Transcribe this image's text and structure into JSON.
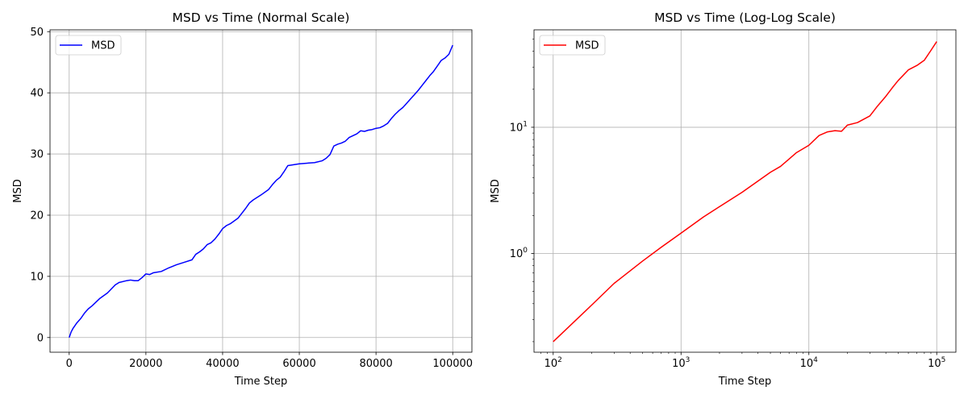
{
  "chart_data": [
    {
      "type": "line",
      "title": "MSD vs Time (Normal Scale)",
      "xlabel": "Time Step",
      "ylabel": "MSD",
      "xscale": "linear",
      "yscale": "linear",
      "xlim": [
        -5000,
        105000
      ],
      "ylim": [
        -2.4,
        50.3
      ],
      "xticks": [
        0,
        20000,
        40000,
        60000,
        80000,
        100000
      ],
      "xtick_labels": [
        "0",
        "20000",
        "40000",
        "60000",
        "80000",
        "100000"
      ],
      "yticks": [
        0,
        10,
        20,
        30,
        40,
        50
      ],
      "ytick_labels": [
        "0",
        "10",
        "20",
        "30",
        "40",
        "50"
      ],
      "grid": true,
      "legend": {
        "placement": "upper-left",
        "entries": [
          "MSD"
        ]
      },
      "series": [
        {
          "name": "MSD",
          "color": "#0000ff",
          "x": [
            0,
            500,
            1000,
            2000,
            3000,
            4000,
            5000,
            6000,
            8000,
            10000,
            12000,
            13000,
            15000,
            16000,
            17000,
            18000,
            19000,
            20000,
            21000,
            22000,
            24000,
            26000,
            28000,
            30000,
            32000,
            33000,
            34000,
            35000,
            36000,
            37000,
            38000,
            39000,
            40000,
            41000,
            42000,
            44000,
            46000,
            47000,
            48000,
            50000,
            52000,
            53000,
            54000,
            55000,
            56000,
            57000,
            58000,
            59000,
            60000,
            62000,
            64000,
            66000,
            67000,
            68000,
            69000,
            70000,
            71000,
            72000,
            73000,
            74000,
            75000,
            76000,
            77000,
            78000,
            79000,
            80000,
            81000,
            82000,
            83000,
            84000,
            85000,
            86000,
            87000,
            88000,
            89000,
            90000,
            91000,
            92000,
            93000,
            94000,
            95000,
            96000,
            97000,
            98000,
            99000,
            100000
          ],
          "y": [
            0.0,
            0.9,
            1.5,
            2.4,
            3.1,
            4.0,
            4.7,
            5.2,
            6.4,
            7.3,
            8.6,
            9.0,
            9.3,
            9.4,
            9.3,
            9.3,
            9.8,
            10.4,
            10.3,
            10.6,
            10.8,
            11.4,
            11.9,
            12.3,
            12.7,
            13.6,
            14.0,
            14.5,
            15.2,
            15.5,
            16.1,
            16.9,
            17.8,
            18.3,
            18.6,
            19.5,
            21.1,
            22.0,
            22.5,
            23.3,
            24.2,
            25.0,
            25.7,
            26.2,
            27.1,
            28.1,
            28.2,
            28.3,
            28.4,
            28.5,
            28.6,
            28.9,
            29.3,
            29.9,
            31.3,
            31.6,
            31.8,
            32.1,
            32.7,
            33.0,
            33.3,
            33.8,
            33.7,
            33.9,
            34.0,
            34.2,
            34.3,
            34.6,
            35.0,
            35.8,
            36.5,
            37.1,
            37.6,
            38.3,
            39.0,
            39.7,
            40.4,
            41.2,
            42.0,
            42.8,
            43.5,
            44.4,
            45.3,
            45.7,
            46.3,
            47.8
          ]
        }
      ]
    },
    {
      "type": "line",
      "title": "MSD vs Time (Log-Log Scale)",
      "xlabel": "Time Step",
      "ylabel": "MSD",
      "xscale": "log",
      "yscale": "log",
      "xlim": [
        70.8,
        141250
      ],
      "ylim": [
        0.165,
        59.2
      ],
      "xticks": [
        100,
        1000,
        10000,
        100000
      ],
      "xtick_labels": [
        {
          "base": "10",
          "exp": "2"
        },
        {
          "base": "10",
          "exp": "3"
        },
        {
          "base": "10",
          "exp": "4"
        },
        {
          "base": "10",
          "exp": "5"
        }
      ],
      "yticks": [
        1,
        10
      ],
      "ytick_labels": [
        {
          "base": "10",
          "exp": "0"
        },
        {
          "base": "10",
          "exp": "1"
        }
      ],
      "grid": true,
      "legend": {
        "placement": "upper-left",
        "entries": [
          "MSD"
        ]
      },
      "series": [
        {
          "name": "MSD",
          "color": "#ff0000",
          "x": [
            100,
            200,
            300,
            500,
            700,
            1000,
            1500,
            2000,
            3000,
            4000,
            5000,
            6000,
            7000,
            8000,
            10000,
            12000,
            14000,
            16000,
            18000,
            20000,
            24000,
            30000,
            34000,
            40000,
            45000,
            50000,
            60000,
            70000,
            80000,
            90000,
            100000
          ],
          "y": [
            0.2,
            0.39,
            0.58,
            0.87,
            1.12,
            1.45,
            1.95,
            2.35,
            3.05,
            3.75,
            4.4,
            4.9,
            5.6,
            6.3,
            7.2,
            8.6,
            9.2,
            9.4,
            9.3,
            10.4,
            10.9,
            12.3,
            14.5,
            17.6,
            20.6,
            23.5,
            28.5,
            30.9,
            34.0,
            40.6,
            47.8
          ]
        }
      ]
    }
  ]
}
